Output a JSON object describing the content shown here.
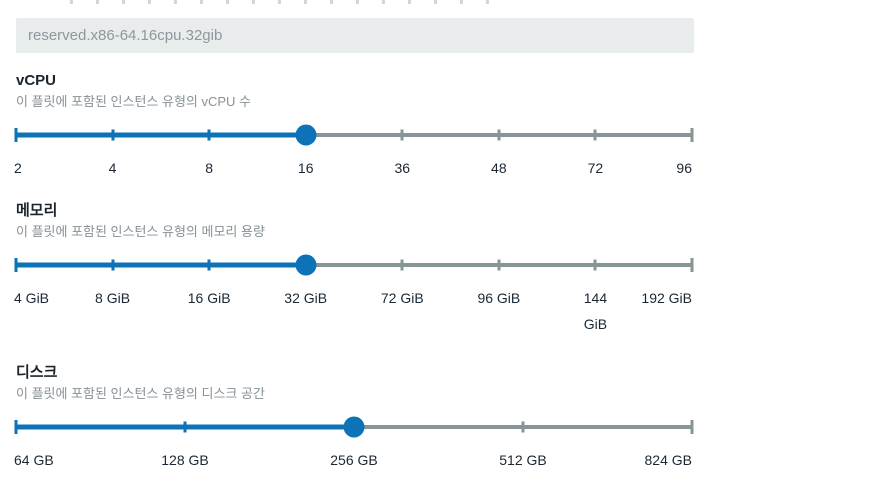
{
  "colors": {
    "accent": "#0d72b8",
    "track": "#879596",
    "field_bg": "#e9eced",
    "field_text": "#8c979e"
  },
  "bundle_field": {
    "value": "reserved.x86-64.16cpu.32gib"
  },
  "sections": [
    {
      "id": "vcpu",
      "title": "vCPU",
      "description": "이 플릿에 포함된 인스턴스 유형의 vCPU 수",
      "ticks": [
        "2",
        "4",
        "8",
        "16",
        "36",
        "48",
        "72",
        "96"
      ],
      "selected_index": 3,
      "selected_value": "16"
    },
    {
      "id": "memory",
      "title": "메모리",
      "description": "이 플릿에 포함된 인스턴스 유형의 메모리 용량",
      "ticks": [
        "4 GiB",
        "8 GiB",
        "16 GiB",
        "32 GiB",
        "72 GiB",
        "96 GiB",
        "144\nGiB",
        "192 GiB"
      ],
      "selected_index": 3,
      "selected_value": "32 GiB"
    },
    {
      "id": "disk",
      "title": "디스크",
      "description": "이 플릿에 포함된 인스턴스 유형의 디스크 공간",
      "ticks": [
        "64 GB",
        "128 GB",
        "256 GB",
        "512 GB",
        "824 GB"
      ],
      "selected_index": 2,
      "selected_value": "256 GB"
    }
  ]
}
